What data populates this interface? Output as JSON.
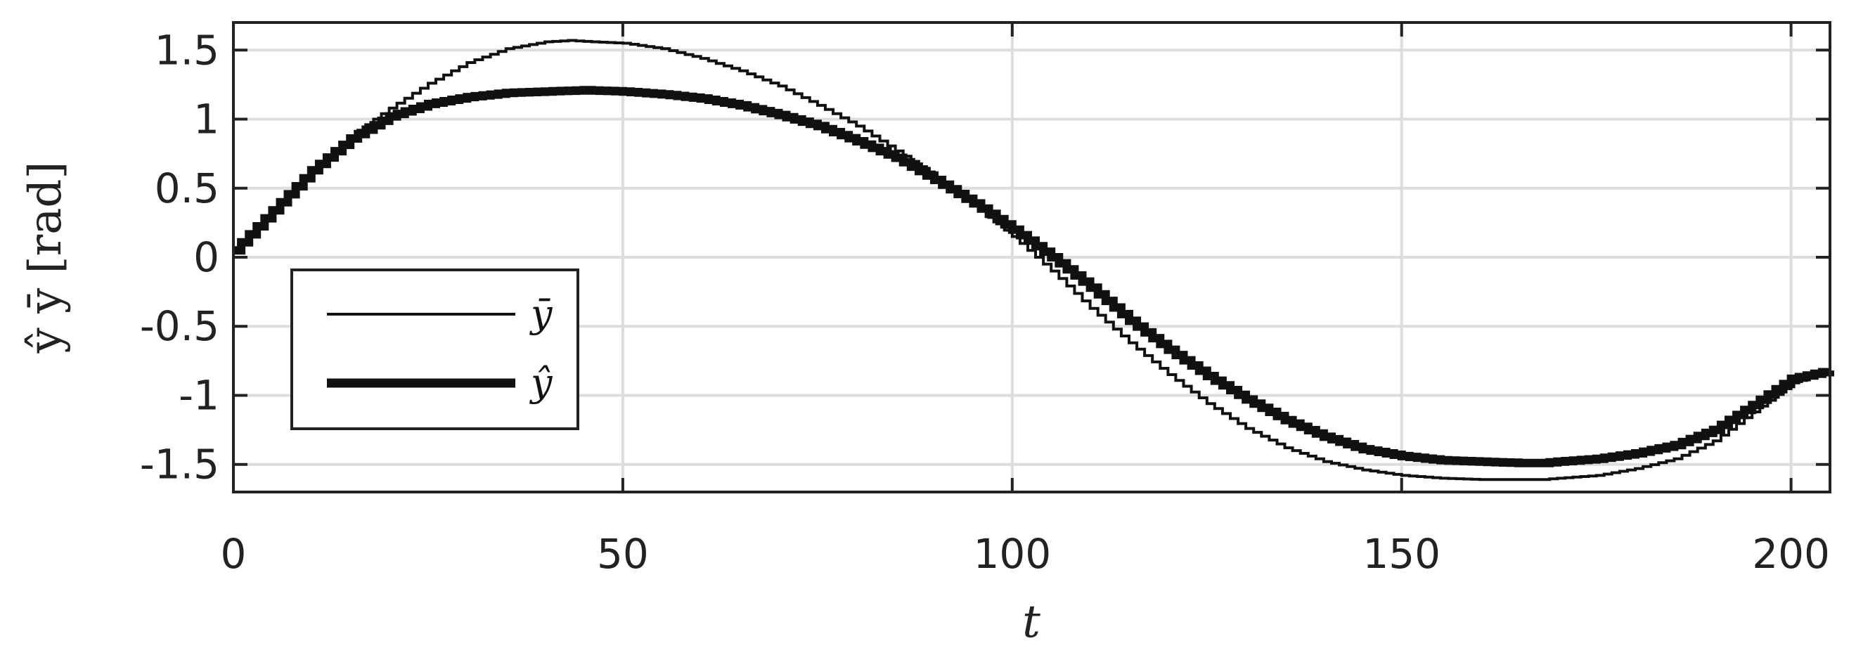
{
  "chart_data": {
    "type": "line",
    "title": "",
    "xlabel": "t",
    "ylabel": "ŷ ȳ [rad]",
    "xlim": [
      0,
      205
    ],
    "ylim": [
      -1.7,
      1.7
    ],
    "xticks": [
      0,
      50,
      100,
      150,
      200
    ],
    "xtick_labels": [
      "0",
      "50",
      "100",
      "150",
      "200"
    ],
    "yticks": [
      1.5,
      1,
      0.5,
      0,
      -0.5,
      -1,
      -1.5
    ],
    "ytick_labels": [
      "1.5",
      "1",
      "0.5",
      "0",
      "-0.5",
      "-1",
      "-1.5"
    ],
    "grid": true,
    "legend_position": "center-left",
    "series": [
      {
        "name": "ȳ",
        "line": "thin",
        "color": "#111111",
        "x": [
          0,
          5,
          10,
          15,
          20,
          25,
          30,
          35,
          40,
          43,
          46,
          50,
          55,
          60,
          65,
          70,
          75,
          80,
          85,
          90,
          95,
          100,
          105,
          110,
          115,
          120,
          125,
          130,
          135,
          140,
          145,
          150,
          155,
          160,
          165,
          168,
          170,
          175,
          180,
          185,
          190,
          195,
          200,
          205
        ],
        "y": [
          0.05,
          0.33,
          0.62,
          0.88,
          1.08,
          1.26,
          1.41,
          1.51,
          1.56,
          1.57,
          1.56,
          1.55,
          1.51,
          1.44,
          1.35,
          1.24,
          1.1,
          0.95,
          0.77,
          0.58,
          0.38,
          0.15,
          -0.1,
          -0.37,
          -0.62,
          -0.85,
          -1.06,
          -1.24,
          -1.38,
          -1.48,
          -1.54,
          -1.58,
          -1.6,
          -1.61,
          -1.61,
          -1.61,
          -1.6,
          -1.58,
          -1.53,
          -1.46,
          -1.33,
          -1.12,
          -0.91,
          -0.82
        ]
      },
      {
        "name": "ŷ",
        "line": "thick",
        "color": "#111111",
        "x": [
          0,
          5,
          10,
          15,
          20,
          25,
          30,
          35,
          40,
          45,
          50,
          55,
          60,
          65,
          70,
          75,
          80,
          85,
          90,
          95,
          100,
          105,
          110,
          115,
          120,
          125,
          130,
          135,
          140,
          145,
          150,
          155,
          160,
          165,
          168,
          170,
          175,
          180,
          185,
          190,
          195,
          200,
          205
        ],
        "y": [
          0.05,
          0.34,
          0.63,
          0.86,
          1.02,
          1.11,
          1.16,
          1.19,
          1.2,
          1.21,
          1.2,
          1.18,
          1.15,
          1.1,
          1.03,
          0.95,
          0.84,
          0.72,
          0.56,
          0.39,
          0.2,
          0.0,
          -0.22,
          -0.46,
          -0.67,
          -0.86,
          -1.03,
          -1.18,
          -1.3,
          -1.39,
          -1.44,
          -1.47,
          -1.48,
          -1.49,
          -1.49,
          -1.48,
          -1.46,
          -1.42,
          -1.36,
          -1.25,
          -1.07,
          -0.88,
          -0.82
        ]
      }
    ]
  }
}
